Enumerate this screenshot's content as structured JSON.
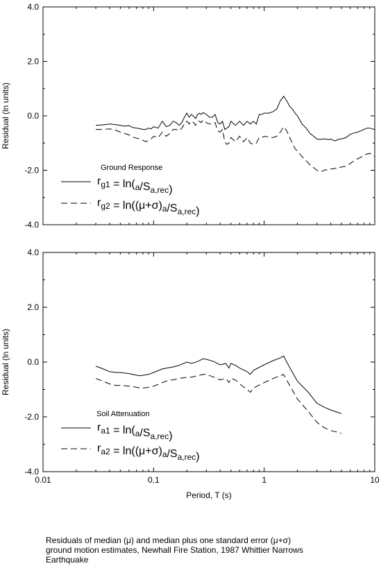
{
  "caption": "Residuals of median (μ) and median plus one standard error (μ+σ)\nground motion estimates, Newhall Fire Station, 1987 Whittier Narrows\nEarthquake",
  "chart_data": [
    {
      "type": "line",
      "xscale": "log",
      "xlim": [
        0.01,
        10
      ],
      "ylim": [
        -4.0,
        4.0
      ],
      "yticks": [
        "4.0",
        "2.0",
        "0.0",
        "-2.0",
        "-4.0"
      ],
      "ylabel": "Residual (ln units)",
      "xlabel": "",
      "grid": false,
      "legend": {
        "title": "Ground Response",
        "placement": "lower-left",
        "entries": [
          {
            "text": "rg1 = ln(μa/Sa,rec)",
            "r_sub": "g1",
            "mid": "= ln(",
            "paren": "",
            "a_sub": "a",
            "rec_sub": "a,rec",
            "close": ")",
            "dash": "solid"
          },
          {
            "text": "rg2 = ln((μ+σ)a/Sa,rec)",
            "r_sub": "g2",
            "mid": "= ln(",
            "paren": "(μ+σ)",
            "a_sub": "a",
            "rec_sub": "a,rec",
            "close": ")",
            "dash": "dashed"
          }
        ]
      },
      "series": [
        {
          "dash": "solid",
          "x": [
            0.03,
            0.035,
            0.04,
            0.045,
            0.05,
            0.055,
            0.06,
            0.065,
            0.07,
            0.075,
            0.08,
            0.085,
            0.09,
            0.095,
            0.1,
            0.11,
            0.12,
            0.13,
            0.14,
            0.15,
            0.16,
            0.17,
            0.18,
            0.19,
            0.2,
            0.21,
            0.22,
            0.23,
            0.24,
            0.25,
            0.26,
            0.27,
            0.28,
            0.3,
            0.32,
            0.34,
            0.36,
            0.38,
            0.4,
            0.42,
            0.44,
            0.46,
            0.48,
            0.5,
            0.55,
            0.6,
            0.65,
            0.7,
            0.75,
            0.8,
            0.85,
            0.9,
            0.95,
            1.0,
            1.1,
            1.2,
            1.3,
            1.4,
            1.5,
            1.6,
            1.7,
            1.8,
            1.9,
            2.0,
            2.2,
            2.4,
            2.6,
            2.8,
            3.0,
            3.2,
            3.4,
            3.6,
            3.8,
            4.0,
            4.2,
            4.4,
            4.6,
            4.8,
            5.0,
            5.5,
            6.0,
            6.5,
            7.0,
            7.5,
            8.0,
            8.5,
            9.0,
            9.5,
            10.0
          ],
          "y": [
            -0.35,
            -0.33,
            -0.3,
            -0.32,
            -0.35,
            -0.38,
            -0.36,
            -0.43,
            -0.45,
            -0.47,
            -0.5,
            -0.5,
            -0.45,
            -0.48,
            -0.4,
            -0.45,
            -0.2,
            -0.4,
            -0.35,
            -0.2,
            -0.25,
            -0.35,
            -0.25,
            -0.05,
            0.1,
            -0.05,
            0.05,
            -0.02,
            -0.1,
            0.05,
            0.1,
            0.05,
            0.12,
            0.05,
            -0.05,
            -0.05,
            0.05,
            -0.25,
            -0.3,
            -0.2,
            -0.5,
            -0.45,
            -0.4,
            -0.2,
            -0.35,
            -0.2,
            -0.35,
            -0.2,
            -0.3,
            -0.2,
            -0.3,
            0.05,
            0.05,
            0.1,
            0.1,
            0.15,
            0.25,
            0.55,
            0.72,
            0.55,
            0.35,
            0.25,
            0.1,
            0.0,
            -0.3,
            -0.45,
            -0.65,
            -0.75,
            -0.85,
            -0.87,
            -0.85,
            -0.85,
            -0.88,
            -0.85,
            -0.9,
            -0.92,
            -0.88,
            -0.85,
            -0.85,
            -0.8,
            -0.68,
            -0.63,
            -0.6,
            -0.55,
            -0.5,
            -0.45,
            -0.45,
            -0.48,
            -0.5
          ]
        },
        {
          "dash": "dashed",
          "x": [
            0.03,
            0.035,
            0.04,
            0.045,
            0.05,
            0.055,
            0.06,
            0.065,
            0.07,
            0.075,
            0.08,
            0.085,
            0.09,
            0.095,
            0.1,
            0.11,
            0.12,
            0.13,
            0.14,
            0.15,
            0.16,
            0.17,
            0.18,
            0.19,
            0.2,
            0.21,
            0.22,
            0.23,
            0.24,
            0.25,
            0.26,
            0.27,
            0.28,
            0.3,
            0.32,
            0.34,
            0.36,
            0.38,
            0.4,
            0.42,
            0.44,
            0.46,
            0.48,
            0.5,
            0.55,
            0.6,
            0.65,
            0.7,
            0.75,
            0.8,
            0.85,
            0.9,
            0.95,
            1.0,
            1.1,
            1.2,
            1.3,
            1.4,
            1.5,
            1.6,
            1.7,
            1.8,
            1.9,
            2.0,
            2.2,
            2.4,
            2.6,
            2.8,
            3.0,
            3.2,
            3.4,
            3.6,
            3.8,
            4.0,
            4.2,
            4.4,
            4.6,
            4.8,
            5.0,
            5.5,
            6.0,
            6.5,
            7.0,
            7.5,
            8.0,
            8.5,
            9.0,
            9.5,
            10.0
          ],
          "y": [
            -0.5,
            -0.5,
            -0.48,
            -0.52,
            -0.6,
            -0.65,
            -0.7,
            -0.78,
            -0.82,
            -0.85,
            -0.9,
            -0.95,
            -0.9,
            -0.85,
            -0.75,
            -0.8,
            -0.6,
            -0.75,
            -0.65,
            -0.5,
            -0.5,
            -0.55,
            -0.45,
            -0.3,
            -0.2,
            -0.3,
            -0.2,
            -0.25,
            -0.35,
            -0.2,
            -0.2,
            -0.25,
            -0.15,
            -0.25,
            -0.3,
            -0.3,
            -0.25,
            -0.55,
            -0.6,
            -0.5,
            -0.95,
            -1.05,
            -1.0,
            -0.8,
            -0.95,
            -0.75,
            -0.95,
            -0.8,
            -1.0,
            -1.05,
            -1.0,
            -0.8,
            -0.8,
            -0.75,
            -0.78,
            -0.8,
            -0.75,
            -0.6,
            -0.4,
            -0.55,
            -0.8,
            -1.0,
            -1.2,
            -1.3,
            -1.5,
            -1.65,
            -1.8,
            -1.9,
            -2.0,
            -2.05,
            -2.02,
            -1.98,
            -2.0,
            -1.95,
            -1.95,
            -1.92,
            -1.95,
            -1.9,
            -1.88,
            -1.85,
            -1.75,
            -1.65,
            -1.58,
            -1.52,
            -1.45,
            -1.4,
            -1.38,
            -1.42,
            -1.5
          ]
        }
      ]
    },
    {
      "type": "line",
      "xscale": "log",
      "xlim": [
        0.01,
        10
      ],
      "ylim": [
        -4.0,
        4.0
      ],
      "yticks": [
        "4.0",
        "2.0",
        "0.0",
        "-2.0",
        "-4.0"
      ],
      "xticks": [
        "0.01",
        "0.1",
        "1",
        "10"
      ],
      "ylabel": "Residual (ln units)",
      "xlabel": "Period, T (s)",
      "grid": false,
      "legend": {
        "title": "Soil Attenuation",
        "placement": "lower-left",
        "entries": [
          {
            "text": "ra1 = ln(μa/Sa,rec)",
            "r_sub": "a1",
            "mid": "= ln(",
            "paren": "",
            "a_sub": "a",
            "rec_sub": "a,rec",
            "close": ")",
            "dash": "solid"
          },
          {
            "text": "ra2 = ln((μ+σ)a/Sa,rec)",
            "r_sub": "a2",
            "mid": "= ln(",
            "paren": "(μ+σ)",
            "a_sub": "a",
            "rec_sub": "a,rec",
            "close": ")",
            "dash": "dashed"
          }
        ]
      },
      "series": [
        {
          "dash": "solid",
          "x": [
            0.03,
            0.035,
            0.04,
            0.045,
            0.05,
            0.06,
            0.07,
            0.075,
            0.08,
            0.09,
            0.1,
            0.12,
            0.14,
            0.15,
            0.17,
            0.2,
            0.22,
            0.25,
            0.28,
            0.3,
            0.35,
            0.4,
            0.45,
            0.48,
            0.5,
            0.55,
            0.6,
            0.7,
            0.75,
            0.8,
            1.0,
            1.2,
            1.4,
            1.5,
            1.7,
            2.0,
            2.5,
            3.0,
            3.5,
            4.0,
            4.5,
            5.0
          ],
          "y": [
            -0.15,
            -0.25,
            -0.35,
            -0.38,
            -0.38,
            -0.42,
            -0.48,
            -0.5,
            -0.48,
            -0.45,
            -0.38,
            -0.25,
            -0.2,
            -0.18,
            -0.12,
            0.0,
            -0.05,
            0.02,
            0.12,
            0.1,
            0.02,
            -0.1,
            -0.05,
            -0.22,
            -0.05,
            -0.12,
            -0.22,
            -0.35,
            -0.45,
            -0.3,
            -0.1,
            0.05,
            0.15,
            0.22,
            -0.2,
            -0.7,
            -1.1,
            -1.5,
            -1.65,
            -1.75,
            -1.82,
            -1.88
          ]
        },
        {
          "dash": "dashed",
          "x": [
            0.03,
            0.035,
            0.04,
            0.045,
            0.05,
            0.06,
            0.07,
            0.075,
            0.08,
            0.09,
            0.1,
            0.12,
            0.14,
            0.15,
            0.17,
            0.2,
            0.22,
            0.25,
            0.28,
            0.3,
            0.35,
            0.4,
            0.45,
            0.48,
            0.5,
            0.55,
            0.6,
            0.7,
            0.75,
            0.8,
            1.0,
            1.2,
            1.4,
            1.5,
            1.7,
            2.0,
            2.5,
            3.0,
            3.5,
            4.0,
            4.5,
            5.0
          ],
          "y": [
            -0.6,
            -0.7,
            -0.8,
            -0.85,
            -0.85,
            -0.88,
            -0.92,
            -0.95,
            -0.95,
            -0.92,
            -0.88,
            -0.75,
            -0.65,
            -0.65,
            -0.6,
            -0.55,
            -0.55,
            -0.5,
            -0.45,
            -0.45,
            -0.55,
            -0.65,
            -0.6,
            -0.75,
            -0.6,
            -0.65,
            -0.8,
            -1.0,
            -1.1,
            -0.95,
            -0.75,
            -0.6,
            -0.5,
            -0.45,
            -0.85,
            -1.35,
            -1.8,
            -2.2,
            -2.4,
            -2.5,
            -2.55,
            -2.6
          ]
        }
      ]
    }
  ]
}
